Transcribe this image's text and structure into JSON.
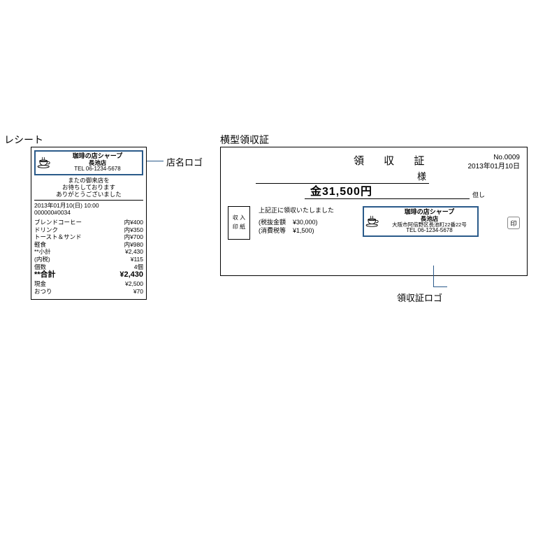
{
  "labels": {
    "receipt": "レシート",
    "ryoshu": "横型領収証",
    "store_logo_callout": "店名ロゴ",
    "ryoshu_logo_callout": "領収証ロゴ"
  },
  "colors": {
    "callout": "#2a5a8a",
    "border": "#000000",
    "background": "#ffffff"
  },
  "receipt": {
    "logo": {
      "line1": "珈琲の店シャープ",
      "line2": "長池店",
      "tel": "TEL 06-1234-5678"
    },
    "thanks": {
      "l1": "またの御来店を",
      "l2": "お待ちしております",
      "l3": "ありがとうございました"
    },
    "datetime": "2013年01月10(日) 10:00",
    "number": "000000#0034",
    "items": [
      {
        "name": "ブレンドコーヒー",
        "price": "内¥400"
      },
      {
        "name": "ドリンク",
        "price": "内¥350"
      },
      {
        "name": "トースト＆サンド",
        "price": "内¥700"
      },
      {
        "name": "軽食",
        "price": "内¥980"
      }
    ],
    "summary": [
      {
        "name": "**小計",
        "price": "¥2,430"
      },
      {
        "name": "(内税)",
        "price": "¥115"
      },
      {
        "name": "個数",
        "price": "4個"
      }
    ],
    "total": {
      "name": "**合計",
      "price": "¥2,430"
    },
    "cash": [
      {
        "name": "現金",
        "price": "¥2,500"
      },
      {
        "name": "おつり",
        "price": "¥70"
      }
    ]
  },
  "ryoshu": {
    "title": "領 収 証",
    "no": "No.0009",
    "date": "2013年01月10日",
    "sama": "様",
    "amount": "金31,500円",
    "eshi": "但し",
    "note": "上記正に領収いたしました",
    "stamp": {
      "l1": "収 入",
      "l2": "印 紙"
    },
    "break": [
      {
        "label": "(税抜金額",
        "value": "¥30,000)"
      },
      {
        "label": "(消費税等",
        "value": "¥1,500)"
      }
    ],
    "logo": {
      "line1": "珈琲の店シャープ",
      "line2": "長池店",
      "addr": "大阪市阿倍野区長池町22番22号",
      "tel": "TEL 06-1234-5678"
    },
    "in": "印"
  }
}
